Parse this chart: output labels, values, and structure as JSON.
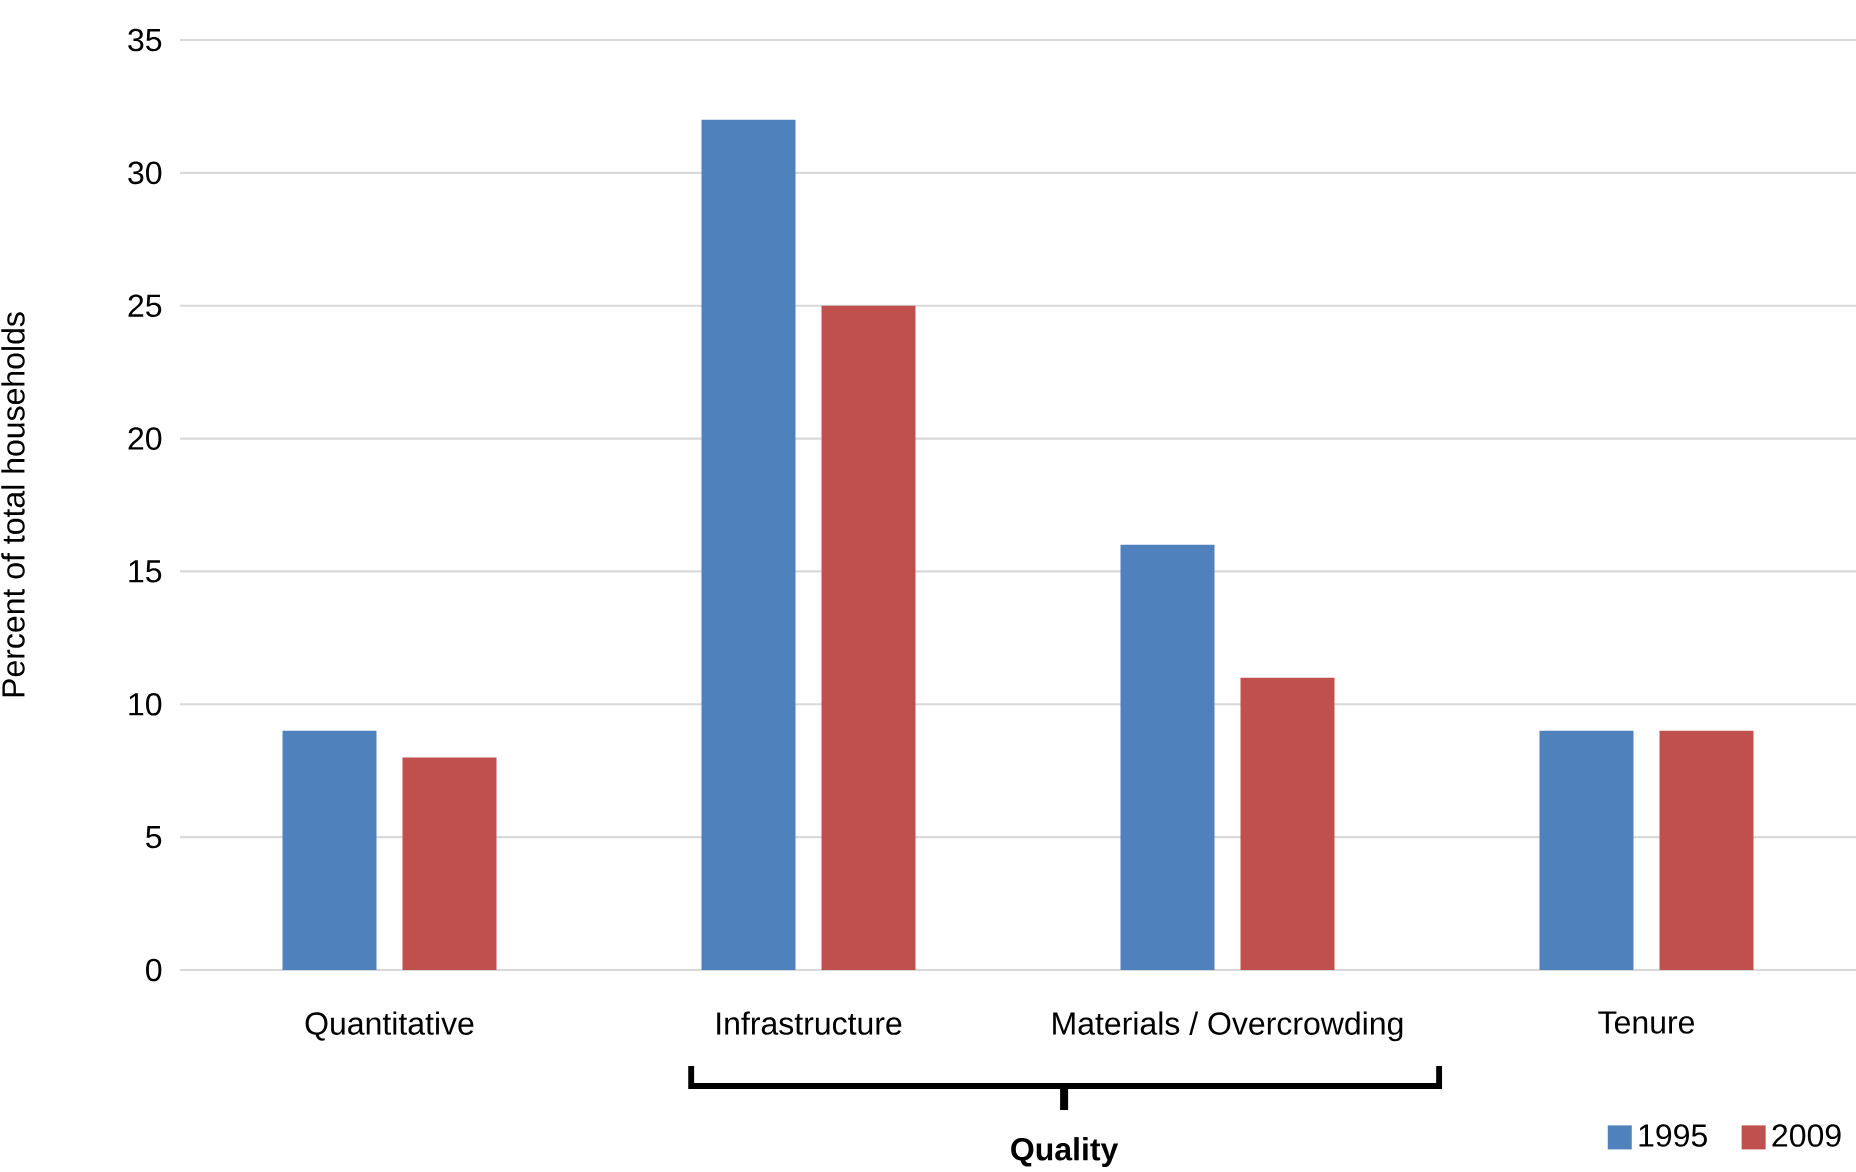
{
  "chart_data": {
    "type": "bar",
    "ylabel": "Percent of total households",
    "categories": [
      "Quantitative",
      "Infrastructure",
      "Materials / Overcrowding",
      "Tenure"
    ],
    "series": [
      {
        "name": "1995",
        "color": "#4f81bd",
        "values": [
          9,
          32,
          16,
          9
        ]
      },
      {
        "name": "2009",
        "color": "#c0504d",
        "values": [
          8,
          25,
          11,
          9
        ]
      }
    ],
    "ylim": [
      0,
      35
    ],
    "yticks": [
      0,
      5,
      10,
      15,
      20,
      25,
      30,
      35
    ],
    "grid": "y",
    "legend": "bottom right",
    "annotations": [
      "Quality"
    ]
  }
}
